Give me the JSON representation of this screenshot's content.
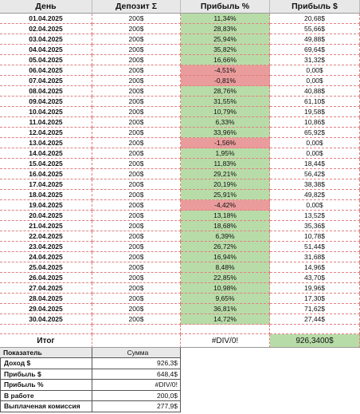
{
  "table": {
    "columns": [
      "День",
      "Депозит Σ",
      "Прибыль %",
      "Прибыль $"
    ],
    "rows": [
      [
        "01.04.2025",
        "200$",
        "11,34%",
        "20,68$"
      ],
      [
        "02.04.2025",
        "200$",
        "28,83%",
        "55,66$"
      ],
      [
        "03.04.2025",
        "200$",
        "25,94%",
        "49,88$"
      ],
      [
        "04.04.2025",
        "200$",
        "35,82%",
        "69,64$"
      ],
      [
        "05.04.2025",
        "200$",
        "16,66%",
        "31,32$"
      ],
      [
        "06.04.2025",
        "200$",
        "-4,51%",
        "0,00$"
      ],
      [
        "07.04.2025",
        "200$",
        "-0,81%",
        "0,00$"
      ],
      [
        "08.04.2025",
        "200$",
        "28,76%",
        "40,88$"
      ],
      [
        "09.04.2025",
        "200$",
        "31,55%",
        "61,10$"
      ],
      [
        "10.04.2025",
        "200$",
        "10,79%",
        "19,58$"
      ],
      [
        "11.04.2025",
        "200$",
        "6,33%",
        "10,86$"
      ],
      [
        "12.04.2025",
        "200$",
        "33,96%",
        "65,92$"
      ],
      [
        "13.04.2025",
        "200$",
        "-1,56%",
        "0,00$"
      ],
      [
        "14.04.2025",
        "200$",
        "1,95%",
        "0,00$"
      ],
      [
        "15.04.2025",
        "200$",
        "11,83%",
        "18,44$"
      ],
      [
        "16.04.2025",
        "200$",
        "29,21%",
        "56,42$"
      ],
      [
        "17.04.2025",
        "200$",
        "20,19%",
        "38,38$"
      ],
      [
        "18.04.2025",
        "200$",
        "25,91%",
        "49,82$"
      ],
      [
        "19.04.2025",
        "200$",
        "-4,42%",
        "0,00$"
      ],
      [
        "20.04.2025",
        "200$",
        "13,18%",
        "13,52$"
      ],
      [
        "21.04.2025",
        "200$",
        "18,68%",
        "35,36$"
      ],
      [
        "22.04.2025",
        "200$",
        "6,39%",
        "10,78$"
      ],
      [
        "23.04.2025",
        "200$",
        "26,72%",
        "51,44$"
      ],
      [
        "24.04.2025",
        "200$",
        "16,94%",
        "31,68$"
      ],
      [
        "25.04.2025",
        "200$",
        "8,48%",
        "14,96$"
      ],
      [
        "26.04.2025",
        "200$",
        "22,85%",
        "43,70$"
      ],
      [
        "27.04.2025",
        "200$",
        "10,98%",
        "19,96$"
      ],
      [
        "28.04.2025",
        "200$",
        "9,65%",
        "17,30$"
      ],
      [
        "29.04.2025",
        "200$",
        "36,81%",
        "71,62$"
      ],
      [
        "30.04.2025",
        "200$",
        "14,72%",
        "27,44$"
      ]
    ],
    "total": {
      "label": "Итог",
      "percent": "#DIV/0!",
      "profit": "926,3400$"
    }
  },
  "summary": {
    "columns": [
      "Показатель",
      "Сумма"
    ],
    "rows": [
      [
        "Доход $",
        "926,3$"
      ],
      [
        "Прибыль $",
        "648,4$"
      ],
      [
        "Прибыль %",
        "#DIV/0!"
      ],
      [
        "В работе",
        "200,0$"
      ],
      [
        "Выплаченая комиссия",
        "277,9$"
      ]
    ]
  }
}
